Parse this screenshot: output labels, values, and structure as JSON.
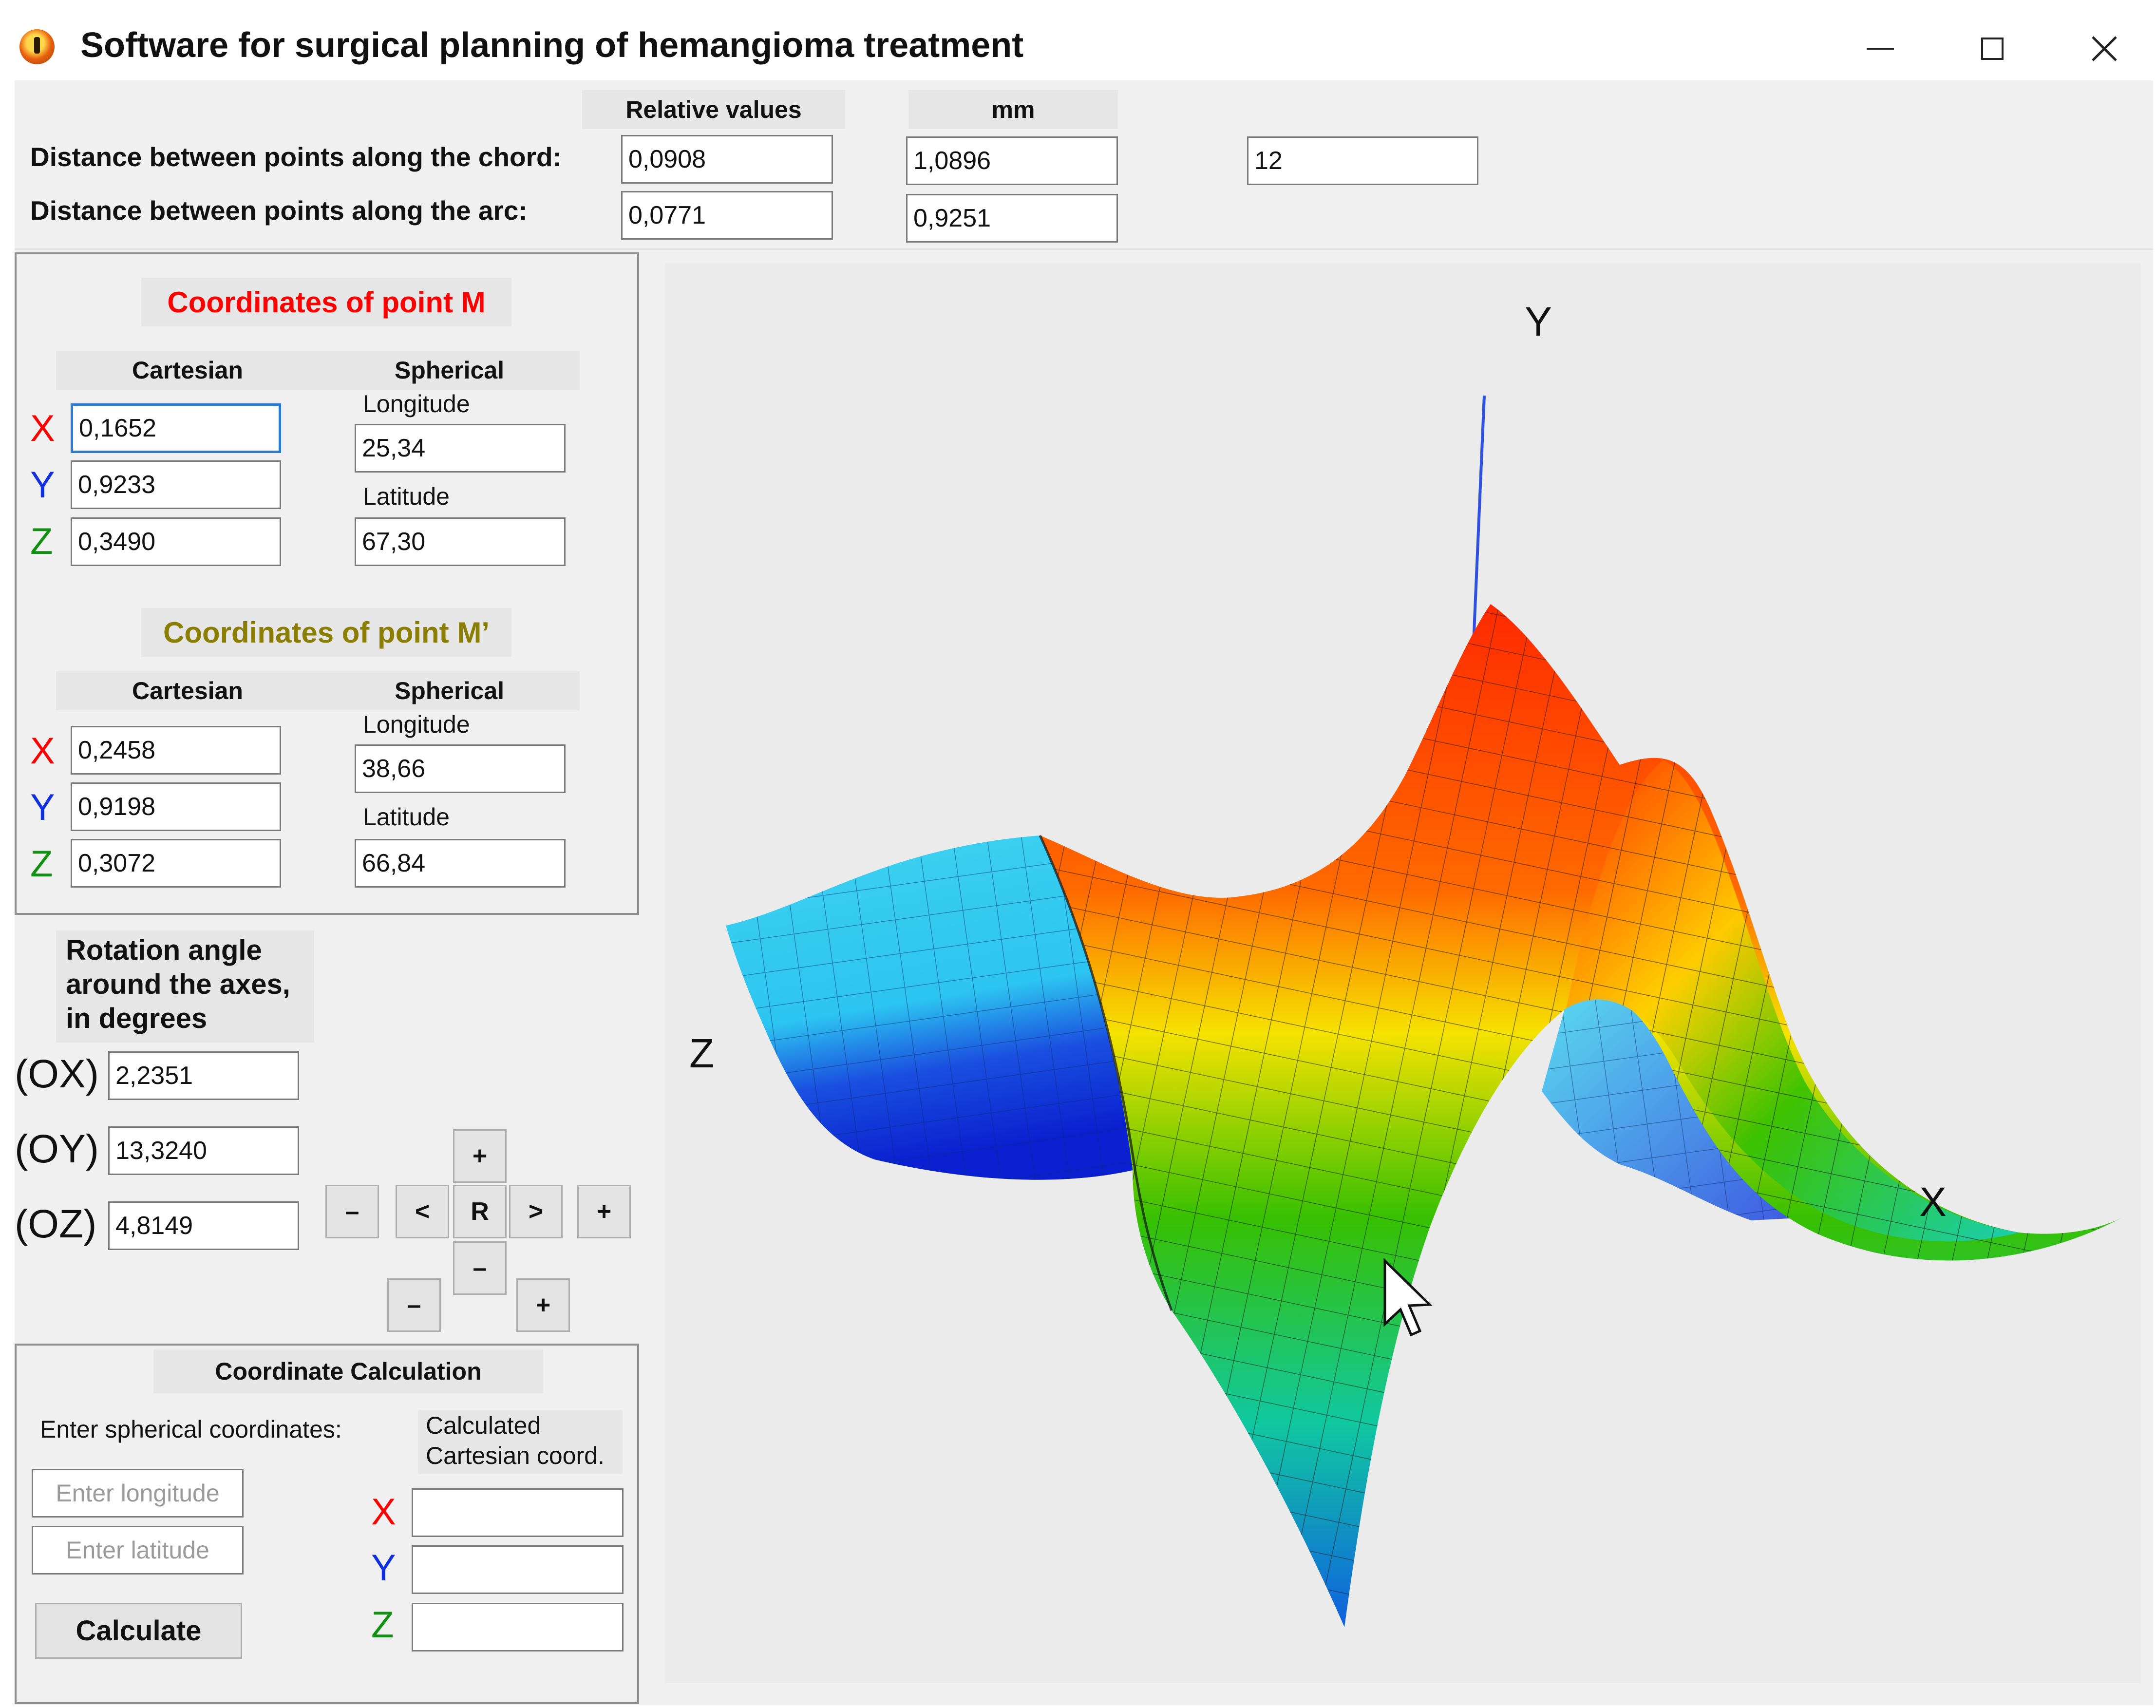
{
  "window": {
    "title": "Software for surgical planning of hemangioma treatment",
    "controls": [
      "minimize",
      "maximize",
      "close"
    ]
  },
  "distances": {
    "header_relative": "Relative values",
    "header_mm": "mm",
    "chord_label": "Distance between points along the chord:",
    "arc_label": "Distance between points along the arc:",
    "chord_relative": "0,0908",
    "chord_mm": "1,0896",
    "arc_relative": "0,0771",
    "arc_mm": "0,9251",
    "extra_value": "12"
  },
  "point_m": {
    "title": "Coordinates of point M",
    "title_color": "#ff0000",
    "cartesian_label": "Cartesian",
    "spherical_label": "Spherical",
    "x": "0,1652",
    "y": "0,9233",
    "z": "0,3490",
    "longitude_label": "Longitude",
    "longitude": "25,34",
    "latitude_label": "Latitude",
    "latitude": "67,30"
  },
  "point_m2": {
    "title": "Coordinates of point M’",
    "title_color": "#8a7d00",
    "cartesian_label": "Cartesian",
    "spherical_label": "Spherical",
    "x": "0,2458",
    "y": "0,9198",
    "z": "0,3072",
    "longitude_label": "Longitude",
    "longitude": "38,66",
    "latitude_label": "Latitude",
    "latitude": "66,84"
  },
  "axis_letters": {
    "x": "X",
    "y": "Y",
    "z": "Z",
    "x_color": "#ff0000",
    "y_color": "#1030e0",
    "z_color": "#109010"
  },
  "rotation": {
    "title_line1": "Rotation angle",
    "title_line2": "around the axes,",
    "title_line3": "in degrees",
    "ox_label": "(OX)",
    "ox": "2,2351",
    "oy_label": "(OY)",
    "oy": "13,3240",
    "oz_label": "(OZ)",
    "oz": "4,8149",
    "buttons": {
      "plus": "+",
      "minus": "–",
      "left": "<",
      "right": ">",
      "reset": "R"
    }
  },
  "calc": {
    "title": "Coordinate Calculation",
    "enter_label": "Enter spherical coordinates:",
    "calculated_line1": "Calculated",
    "calculated_line2": "Cartesian coord.",
    "longitude_placeholder": "Enter longitude",
    "latitude_placeholder": "Enter latitude",
    "calculate_button": "Calculate",
    "x": "",
    "y": "",
    "z": ""
  },
  "plot": {
    "axis_y": "Y",
    "axis_z": "Z",
    "axis_x": "X"
  }
}
